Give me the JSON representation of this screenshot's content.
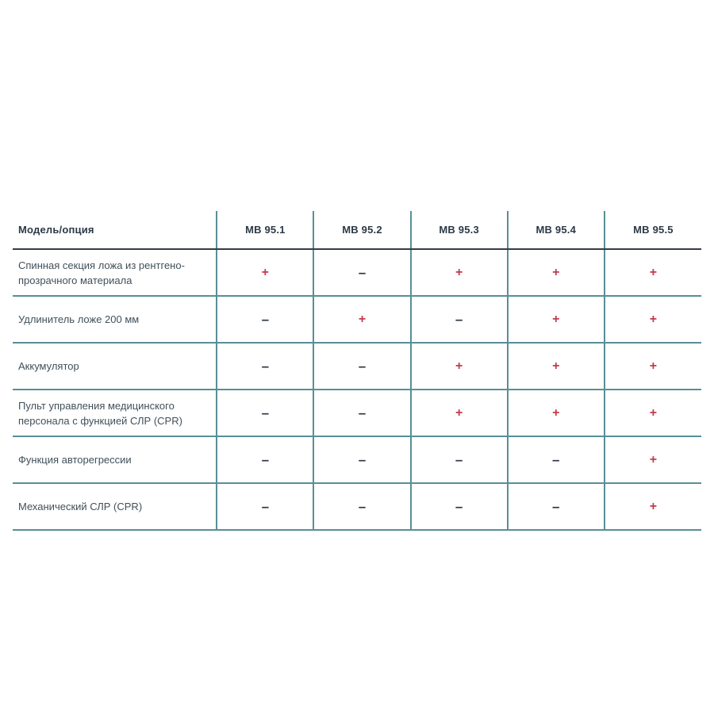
{
  "page": {
    "background": "#ffffff"
  },
  "table": {
    "header": {
      "row_label_column": "Модель/опция",
      "columns": [
        "МВ 95.1",
        "МВ 95.2",
        "МВ 95.3",
        "МВ 95.4",
        "МВ 95.5"
      ]
    },
    "rows": [
      {
        "label": "Спинная секция ложа из рентгено-прозрачного материала",
        "values": [
          "+",
          "–",
          "+",
          "+",
          "+"
        ]
      },
      {
        "label": "Удлинитель ложе 200 мм",
        "values": [
          "–",
          "+",
          "–",
          "+",
          "+"
        ]
      },
      {
        "label": "Аккумулятор",
        "values": [
          "–",
          "–",
          "+",
          "+",
          "+"
        ]
      },
      {
        "label": "Пульт управления медицинского персонала с функцией СЛР (CPR)",
        "values": [
          "–",
          "–",
          "+",
          "+",
          "+"
        ]
      },
      {
        "label": "Функция авторегрессии",
        "values": [
          "–",
          "–",
          "–",
          "–",
          "+"
        ]
      },
      {
        "label": "Механический СЛР (CPR)",
        "values": [
          "–",
          "–",
          "–",
          "–",
          "+"
        ]
      }
    ],
    "symbols": {
      "present": "+",
      "absent": "–"
    },
    "colors": {
      "grid": "#578f97",
      "header_underline": "#343c45",
      "header_text": "#2c3947",
      "label_text": "#41505a",
      "plus": "#c53a4a",
      "minus": "#2a3440"
    }
  }
}
